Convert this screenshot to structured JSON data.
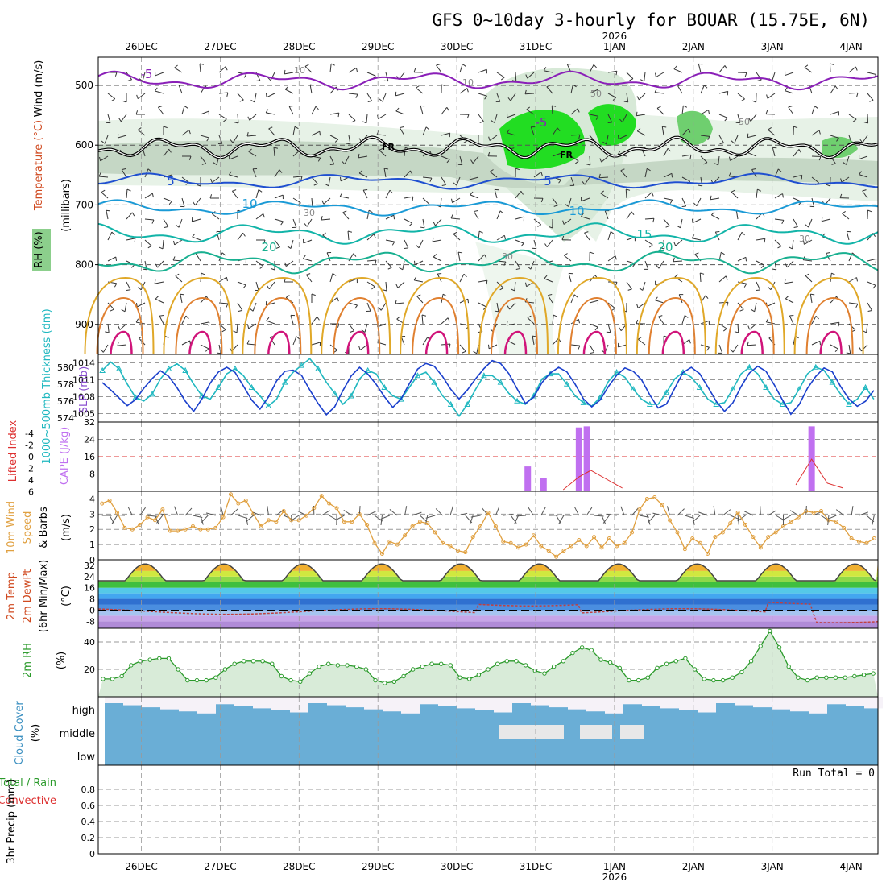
{
  "header": {
    "title": "GFS 0~10day 3-hourly for BOUAR (15.75E, 6N)",
    "year": "2026"
  },
  "dates": [
    "26DEC",
    "27DEC",
    "28DEC",
    "29DEC",
    "30DEC",
    "31DEC",
    "1JAN",
    "2JAN",
    "3JAN",
    "4JAN"
  ],
  "panels": {
    "upper": {
      "label_wind": "Wind (m/s)",
      "label_temp": "Temperature (°C)",
      "label_rh": "RH (%)",
      "label_mb": "(millibars)",
      "pressure_ticks": [
        "500",
        "600",
        "700",
        "800",
        "900"
      ],
      "freezing_label": "FR",
      "isotherm_labels": [
        "-5",
        "-5",
        "5",
        "5",
        "10",
        "10",
        "15",
        "20",
        "20"
      ],
      "rh_labels": [
        "10",
        "10",
        "30",
        "30",
        "50",
        "50",
        "30"
      ]
    },
    "slp": {
      "label_slp": "SLP (mb)",
      "label_thk": "1000~500mb Thickness (dm)",
      "slp_ticks": [
        "1014",
        "1011",
        "1008",
        "1005"
      ],
      "thk_ticks": [
        "580",
        "578",
        "576",
        "574"
      ]
    },
    "cape": {
      "label_li": "Lifted Index",
      "label_cape": "CAPE (J/kg)",
      "li_ticks": [
        "-4",
        "-2",
        "0",
        "2",
        "4",
        "6"
      ],
      "cape_ticks": [
        "32",
        "24",
        "16",
        "8"
      ]
    },
    "wind10": {
      "label_a": "10m Wind",
      "label_b": "Speed",
      "label_c": "& Barbs",
      "label_unit": "(m/s)",
      "ticks": [
        "4",
        "3",
        "2",
        "1",
        "0"
      ]
    },
    "temp2m": {
      "label_a": "2m Temp",
      "label_b": "2m DewPt",
      "label_c": "(6hr Min/Max)",
      "label_unit": "(°C)",
      "ticks": [
        "32",
        "24",
        "16",
        "8",
        "0",
        "-8"
      ]
    },
    "rh2m": {
      "label_a": "2m RH",
      "label_unit": "(%)",
      "ticks": [
        "40",
        "20"
      ]
    },
    "cloud": {
      "label_a": "Cloud Cover",
      "label_unit": "(%)",
      "levels": [
        "high",
        "middle",
        "low"
      ]
    },
    "precip": {
      "label_a": "3hr Precip (mm)",
      "label_b": "Total / Rain",
      "label_c": "Convective",
      "ticks": [
        "0.8",
        "0.6",
        "0.4",
        "0.2",
        "0"
      ],
      "run_total": "Run Total = 0"
    }
  },
  "colors": {
    "slp": "#1a3fcc",
    "thickness": "#20b8c0",
    "temp": "#444444",
    "dewpt": "#c04040",
    "cape_bar": "#c070f0",
    "li": "#dd3030",
    "wind_speed": "#e0a040",
    "rh": "#2a9a2a",
    "cloud": "#6aaed6"
  },
  "chart_data": [
    {
      "type": "line",
      "name": "SLP",
      "unit": "mb",
      "ylim": [
        1003.5,
        1015.5
      ],
      "values": [
        1010.5,
        1009.2,
        1007.8,
        1006.4,
        1007.5,
        1009.5,
        1011.2,
        1012.6,
        1011.6,
        1009.6,
        1007.2,
        1005.4,
        1007.6,
        1010.4,
        1012.4,
        1013.2,
        1012.3,
        1009.9,
        1007.4,
        1005.8,
        1007.9,
        1010.8,
        1012.5,
        1012.7,
        1011.8,
        1009.2,
        1006.8,
        1004.8,
        1006.2,
        1009.1,
        1011.7,
        1013.2,
        1012.0,
        1010.2,
        1008.0,
        1006.1,
        1007.6,
        1010.3,
        1012.9,
        1013.9,
        1013.4,
        1011.6,
        1009.3,
        1007.6,
        1009.2,
        1011.2,
        1013.0,
        1014.4,
        1013.9,
        1012.1,
        1009.4,
        1006.8,
        1007.9,
        1010.5,
        1012.2,
        1013.2,
        1012.4,
        1010.2,
        1007.6,
        1006.2,
        1007.4,
        1009.8,
        1011.8,
        1013.1,
        1012.5,
        1011.0,
        1008.3,
        1006.0,
        1006.7,
        1009.5,
        1012.3,
        1013.2,
        1012.1,
        1009.7,
        1007.2,
        1005.4,
        1006.9,
        1009.8,
        1012.2,
        1013.4,
        1012.5,
        1010.1,
        1007.4,
        1004.9,
        1006.6,
        1009.5,
        1011.6,
        1013.1,
        1012.4,
        1009.8,
        1007.6,
        1006.3,
        1007.2,
        1009.1
      ]
    },
    {
      "type": "line",
      "name": "Thickness",
      "unit": "dm",
      "ylim": [
        573.5,
        581.5
      ],
      "values": [
        579.6,
        580.6,
        579.8,
        578.0,
        576.4,
        576.0,
        576.8,
        578.6,
        579.8,
        580.4,
        579.6,
        578.0,
        576.6,
        576.2,
        577.6,
        579.2,
        579.8,
        579.0,
        577.6,
        576.6,
        575.4,
        576.2,
        578.2,
        579.4,
        580.2,
        581.0,
        579.8,
        578.2,
        576.9,
        575.6,
        576.6,
        578.6,
        579.6,
        579.2,
        577.6,
        576.6,
        576.2,
        577.6,
        579.0,
        579.4,
        578.2,
        576.6,
        575.6,
        574.2,
        575.6,
        577.4,
        579.0,
        579.0,
        578.2,
        576.9,
        576.0,
        575.6,
        576.6,
        578.6,
        579.2,
        579.2,
        578.0,
        576.6,
        575.8,
        575.4,
        576.4,
        578.3,
        579.4,
        578.8,
        577.4,
        576.2,
        575.6,
        575.6,
        577.0,
        578.6,
        579.4,
        578.8,
        577.6,
        576.2,
        575.6,
        575.8,
        577.4,
        579.2,
        580.0,
        579.2,
        577.6,
        576.2,
        575.6,
        575.8,
        577.4,
        579.2,
        580.0,
        579.6,
        578.2,
        576.8,
        575.6,
        576.2,
        577.6,
        576.2
      ]
    },
    {
      "type": "bar",
      "name": "CAPE",
      "unit": "J/kg",
      "ylim": [
        0,
        32
      ],
      "bars": [
        {
          "day": 4.9,
          "value": 11.5
        },
        {
          "day": 5.1,
          "value": 6
        },
        {
          "day": 5.55,
          "value": 29.5
        },
        {
          "day": 5.65,
          "value": 30
        },
        {
          "day": 8.5,
          "value": 30
        }
      ]
    },
    {
      "type": "line",
      "name": "10m wind speed",
      "unit": "m/s",
      "ylim": [
        0,
        4.5
      ],
      "values": [
        3.7,
        3.9,
        3.1,
        2.1,
        2.0,
        2.3,
        2.8,
        2.6,
        3.3,
        1.9,
        1.9,
        2.0,
        2.2,
        2.0,
        2.0,
        2.1,
        2.8,
        4.3,
        3.7,
        3.9,
        3.0,
        2.2,
        2.6,
        2.5,
        3.2,
        2.6,
        2.6,
        2.9,
        3.4,
        4.2,
        3.7,
        3.4,
        2.5,
        2.5,
        3.0,
        2.3,
        1.1,
        0.4,
        1.2,
        1.0,
        1.6,
        2.2,
        2.5,
        2.4,
        1.8,
        1.1,
        0.9,
        0.6,
        0.5,
        1.5,
        2.2,
        3.1,
        2.2,
        1.2,
        1.1,
        0.8,
        1.0,
        1.6,
        0.9,
        0.6,
        0.2,
        0.6,
        0.9,
        1.3,
        0.9,
        1.5,
        0.8,
        1.4,
        0.9,
        1.1,
        1.8,
        3.3,
        4.0,
        4.1,
        3.6,
        2.6,
        1.8,
        0.7,
        1.4,
        1.1,
        0.4,
        1.5,
        1.8,
        2.4,
        3.1,
        2.3,
        1.5,
        0.8,
        1.5,
        1.8,
        2.2,
        2.5,
        2.8,
        3.2,
        3.1,
        3.2,
        2.6,
        2.5,
        2.1,
        1.4,
        1.2,
        1.1,
        1.4
      ]
    },
    {
      "type": "area",
      "name": "2m RH",
      "unit": "%",
      "ylim": [
        0,
        50
      ],
      "values": [
        13,
        13,
        15,
        23,
        26,
        27,
        28,
        28,
        20,
        12,
        12,
        12,
        14,
        20,
        24,
        26,
        26,
        26,
        24,
        15,
        12,
        11,
        17,
        22,
        24,
        23,
        23,
        22,
        20,
        12,
        10,
        11,
        15,
        20,
        22,
        24,
        24,
        23,
        14,
        13,
        16,
        20,
        24,
        26,
        26,
        23,
        19,
        17,
        22,
        26,
        32,
        36,
        34,
        27,
        25,
        21,
        12,
        12,
        14,
        21,
        24,
        26,
        28,
        20,
        13,
        12,
        12,
        14,
        18,
        26,
        37,
        48,
        36,
        22,
        14,
        12,
        14,
        14,
        14,
        14,
        15,
        16,
        17
      ]
    },
    {
      "type": "line",
      "name": "3hr Precip",
      "unit": "mm",
      "ylim": [
        0,
        1
      ],
      "values": [
        0
      ]
    }
  ]
}
